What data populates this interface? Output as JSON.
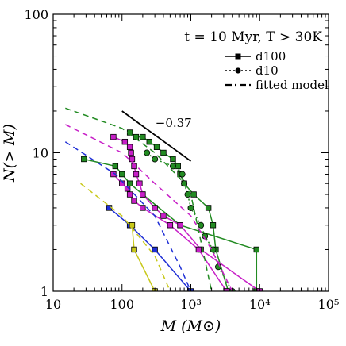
{
  "chart_data": {
    "type": "line",
    "title": "",
    "annotation": "t = 10 Myr, T > 30K",
    "xlabel": "M (M⊙)",
    "ylabel": "N(> M)",
    "xscale": "log",
    "yscale": "log",
    "xlim": [
      10,
      100000
    ],
    "ylim": [
      1,
      100
    ],
    "xtick_labels": [
      "10",
      "100",
      "10³",
      "10⁴",
      "10⁵"
    ],
    "ytick_labels": [
      "1",
      "10",
      "100"
    ],
    "legend": {
      "placement": "top-right",
      "entries": [
        {
          "label": "d100",
          "style": "solid-square"
        },
        {
          "label": "d10",
          "style": "dotted-circle"
        },
        {
          "label": "fitted model",
          "style": "dashdot"
        }
      ]
    },
    "slope_annotation": {
      "label": "−0.37",
      "x": [
        100,
        1000
      ],
      "y": [
        20,
        8.7
      ]
    },
    "colors": {
      "green": "#228b22",
      "magenta": "#c71fc7",
      "blue": "#1f2fd6",
      "yellow": "#c8c81a"
    },
    "series": [
      {
        "color": "green",
        "style": "solid-square",
        "x": [
          130,
          160,
          200,
          250,
          320,
          400,
          550,
          650,
          700,
          800,
          1100,
          1800,
          2100,
          2300,
          3500
        ],
        "y": [
          14,
          13,
          13,
          12,
          11,
          10,
          9,
          8,
          7,
          6,
          5,
          4,
          3,
          2,
          1
        ]
      },
      {
        "color": "green",
        "style": "solid-square",
        "x": [
          28,
          80,
          100,
          130,
          200,
          700,
          9000,
          9000
        ],
        "y": [
          9,
          8,
          7,
          6,
          5,
          3,
          2,
          1
        ]
      },
      {
        "color": "green",
        "style": "dotted-circle",
        "x": [
          230,
          300,
          550,
          750,
          800,
          900,
          1000,
          1400,
          1600,
          2100,
          2500,
          4000
        ],
        "y": [
          10,
          9,
          8,
          7,
          6,
          5,
          4,
          3,
          2.5,
          2,
          1.5,
          1
        ]
      },
      {
        "color": "magenta",
        "style": "solid-square",
        "x": [
          75,
          110,
          130,
          135,
          140,
          150,
          160,
          180,
          200,
          300,
          400,
          700,
          1400,
          10000
        ],
        "y": [
          13,
          12,
          11,
          10,
          9,
          8,
          7,
          6,
          5,
          4,
          3.5,
          3,
          2,
          1
        ]
      },
      {
        "color": "magenta",
        "style": "solid-square",
        "x": [
          75,
          100,
          120,
          130,
          150,
          200,
          500,
          1300,
          3300
        ],
        "y": [
          7,
          6,
          5.5,
          5,
          4.5,
          4,
          3,
          2,
          1
        ]
      },
      {
        "color": "blue",
        "style": "solid-square",
        "x": [
          65,
          130,
          300,
          1000
        ],
        "y": [
          4,
          3,
          2,
          1
        ]
      },
      {
        "color": "yellow",
        "style": "solid-square",
        "x": [
          140,
          150,
          300
        ],
        "y": [
          3,
          2,
          1
        ]
      },
      {
        "color": "green",
        "style": "dashed",
        "x": [
          15,
          100,
          300,
          700,
          1000,
          2000
        ],
        "y": [
          21,
          15,
          10,
          6.5,
          5,
          1
        ]
      },
      {
        "color": "magenta",
        "style": "dashed",
        "x": [
          15,
          100,
          300,
          1000,
          2000,
          4000
        ],
        "y": [
          16,
          10,
          6,
          3.5,
          2,
          1
        ]
      },
      {
        "color": "blue",
        "style": "dashed",
        "x": [
          15,
          80,
          300,
          700,
          1000
        ],
        "y": [
          12,
          7,
          3.5,
          1.5,
          1
        ]
      },
      {
        "color": "yellow",
        "style": "dashed",
        "x": [
          25,
          100,
          300,
          500
        ],
        "y": [
          6,
          3.5,
          1.8,
          1
        ]
      }
    ]
  }
}
